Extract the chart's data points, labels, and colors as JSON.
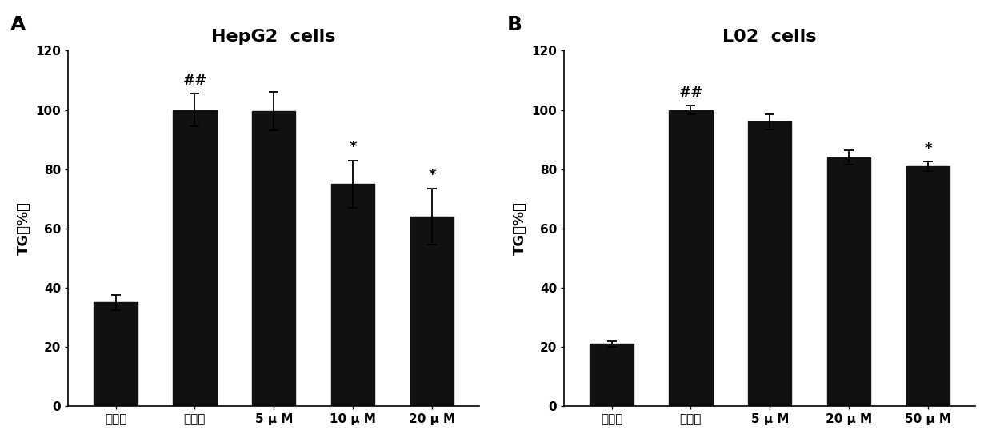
{
  "panel_A": {
    "title": "HepG2  cells",
    "categories": [
      "正常组",
      "模型组",
      "5 μ M",
      "10 μ M",
      "20 μ M"
    ],
    "values": [
      35,
      100,
      99.5,
      75,
      64
    ],
    "errors": [
      2.5,
      5.5,
      6.5,
      8.0,
      9.5
    ],
    "annotations": [
      "",
      "##",
      "",
      "*",
      "*"
    ],
    "ylabel": "TG（%）",
    "panel_label": "A",
    "ylim": [
      0,
      120
    ],
    "yticks": [
      0,
      20,
      40,
      60,
      80,
      100,
      120
    ]
  },
  "panel_B": {
    "title": "L02  cells",
    "categories": [
      "正常组",
      "模型组",
      "5 μ M",
      "20 μ M",
      "50 μ M"
    ],
    "values": [
      21,
      100,
      96,
      84,
      81
    ],
    "errors": [
      1.0,
      1.5,
      2.5,
      2.5,
      1.5
    ],
    "annotations": [
      "",
      "##",
      "",
      "",
      "*"
    ],
    "ylabel": "TG（%）",
    "panel_label": "B",
    "ylim": [
      0,
      120
    ],
    "yticks": [
      0,
      20,
      40,
      60,
      80,
      100,
      120
    ]
  },
  "bar_color": "#111111",
  "bar_width": 0.55,
  "background_color": "#ffffff",
  "annotation_fontsize": 13,
  "title_fontsize": 16,
  "axis_label_fontsize": 13,
  "tick_fontsize": 11,
  "panel_label_fontsize": 18
}
